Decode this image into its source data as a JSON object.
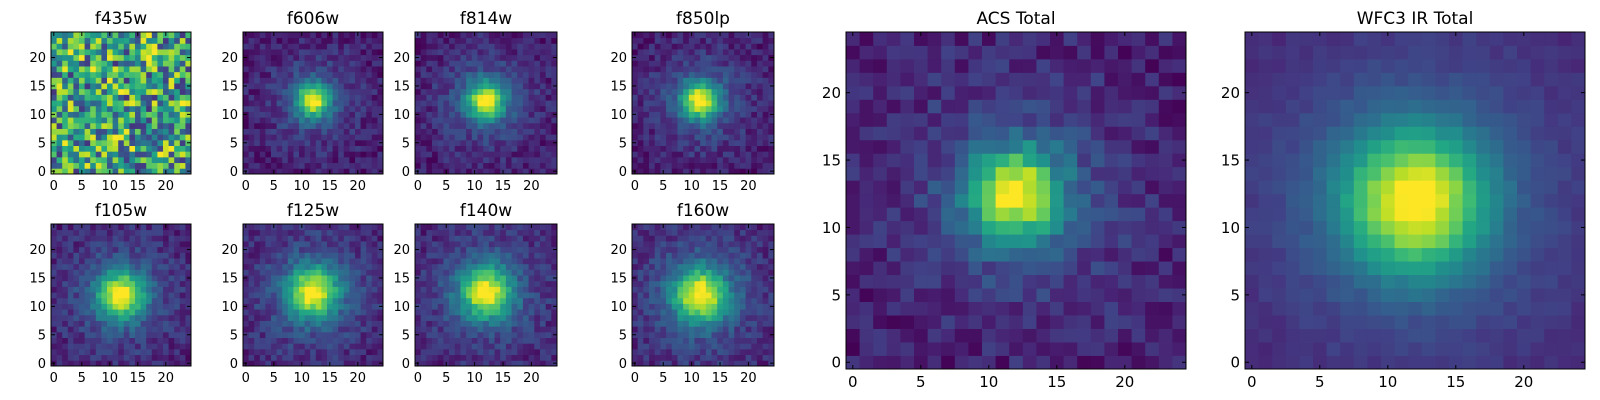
{
  "figure": {
    "description_free": true
  },
  "chart_data": [
    {
      "type": "heatmap",
      "title": "f435w",
      "colormap": "viridis",
      "grid": false,
      "xlim": [
        0,
        25
      ],
      "ylim": [
        0,
        25
      ],
      "xticks": [
        0,
        5,
        10,
        15,
        20
      ],
      "yticks": [
        0,
        5,
        10,
        15,
        20
      ],
      "source_center": [
        12,
        12
      ],
      "peak_spread": 0,
      "noise_level": "very high",
      "pattern": "noise"
    },
    {
      "type": "heatmap",
      "title": "f606w",
      "colormap": "viridis",
      "grid": false,
      "xlim": [
        0,
        25
      ],
      "ylim": [
        0,
        25
      ],
      "xticks": [
        0,
        5,
        10,
        15,
        20
      ],
      "yticks": [
        0,
        5,
        10,
        15,
        20
      ],
      "source_center": [
        12,
        12.5
      ],
      "sigma": 2.0,
      "pattern": "compact source"
    },
    {
      "type": "heatmap",
      "title": "f814w",
      "colormap": "viridis",
      "grid": false,
      "xlim": [
        0,
        25
      ],
      "ylim": [
        0,
        25
      ],
      "xticks": [
        0,
        5,
        10,
        15,
        20
      ],
      "yticks": [
        0,
        5,
        10,
        15,
        20
      ],
      "source_center": [
        12,
        12.5
      ],
      "sigma": 2.2,
      "pattern": "compact source"
    },
    {
      "type": "heatmap",
      "title": "f850lp",
      "colormap": "viridis",
      "grid": false,
      "xlim": [
        0,
        25
      ],
      "ylim": [
        0,
        25
      ],
      "xticks": [
        0,
        5,
        10,
        15,
        20
      ],
      "yticks": [
        0,
        5,
        10,
        15,
        20
      ],
      "source_center": [
        11.5,
        12.5
      ],
      "sigma": 2.2,
      "pattern": "compact source"
    },
    {
      "type": "heatmap",
      "title": "f105w",
      "colormap": "viridis",
      "grid": false,
      "xlim": [
        0,
        25
      ],
      "ylim": [
        0,
        25
      ],
      "xticks": [
        0,
        5,
        10,
        15,
        20
      ],
      "yticks": [
        0,
        5,
        10,
        15,
        20
      ],
      "source_center": [
        12,
        12
      ],
      "sigma": 2.8,
      "pattern": "extended source"
    },
    {
      "type": "heatmap",
      "title": "f125w",
      "colormap": "viridis",
      "grid": false,
      "xlim": [
        0,
        25
      ],
      "ylim": [
        0,
        25
      ],
      "xticks": [
        0,
        5,
        10,
        15,
        20
      ],
      "yticks": [
        0,
        5,
        10,
        15,
        20
      ],
      "source_center": [
        12,
        12.5
      ],
      "sigma": 3.0,
      "pattern": "extended source"
    },
    {
      "type": "heatmap",
      "title": "f140w",
      "colormap": "viridis",
      "grid": false,
      "xlim": [
        0,
        25
      ],
      "ylim": [
        0,
        25
      ],
      "xticks": [
        0,
        5,
        10,
        15,
        20
      ],
      "yticks": [
        0,
        5,
        10,
        15,
        20
      ],
      "source_center": [
        12,
        12.5
      ],
      "sigma": 3.0,
      "pattern": "extended source"
    },
    {
      "type": "heatmap",
      "title": "f160w",
      "colormap": "viridis",
      "grid": false,
      "xlim": [
        0,
        25
      ],
      "ylim": [
        0,
        25
      ],
      "xticks": [
        0,
        5,
        10,
        15,
        20
      ],
      "yticks": [
        0,
        5,
        10,
        15,
        20
      ],
      "source_center": [
        11.5,
        12
      ],
      "sigma": 3.2,
      "pattern": "extended source"
    },
    {
      "type": "heatmap",
      "title": "ACS Total",
      "colormap": "viridis",
      "grid": false,
      "xlim": [
        0,
        25
      ],
      "ylim": [
        0,
        25
      ],
      "xticks": [
        0,
        5,
        10,
        15,
        20
      ],
      "yticks": [
        0,
        5,
        10,
        15,
        20
      ],
      "source_center": [
        12,
        12.5
      ],
      "sigma": 2.2,
      "pattern": "compact source"
    },
    {
      "type": "heatmap",
      "title": "WFC3 IR Total",
      "colormap": "viridis",
      "grid": false,
      "xlim": [
        0,
        25
      ],
      "ylim": [
        0,
        25
      ],
      "xticks": [
        0,
        5,
        10,
        15,
        20
      ],
      "yticks": [
        0,
        5,
        10,
        15,
        20
      ],
      "source_center": [
        12,
        12
      ],
      "sigma": 3.6,
      "pattern": "smooth extended source"
    }
  ]
}
